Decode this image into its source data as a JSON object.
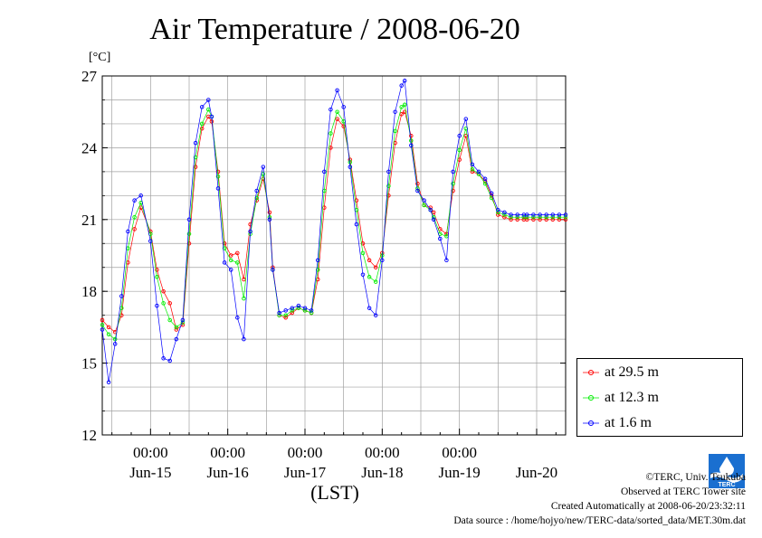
{
  "title": "Air Temperature / 2008-06-20",
  "unit_label": "[°C]",
  "x_axis_label": "(LST)",
  "legend": [
    {
      "label": "at 29.5 m",
      "color": "#ff0000"
    },
    {
      "label": "at 12.3 m",
      "color": "#00ee00"
    },
    {
      "label": "at 1.6 m",
      "color": "#0000ff"
    }
  ],
  "credits": {
    "line1": "©TERC, Univ. Tsukuba",
    "line2": "Observed at TERC Tower site",
    "line3": "Created Automatically at 2008-06-20/23:32:11",
    "line4": "Data source : /home/hojyo/new/TERC-data/sorted_data/MET.30m.dat"
  },
  "logo_text": "TERC",
  "chart_data": {
    "type": "line",
    "title": "Air Temperature / 2008-06-20",
    "ylabel": "[°C]",
    "xlabel": "(LST)",
    "ylim": [
      12,
      27
    ],
    "y_ticks": [
      12,
      15,
      18,
      21,
      24,
      27
    ],
    "xlim": [
      -15,
      129
    ],
    "x_unit": "hours since Jun-15 00:00",
    "x_tick_marks": [
      0,
      24,
      48,
      72,
      96
    ],
    "x_tick_labels": [
      "00:00",
      "00:00",
      "00:00",
      "00:00",
      "00:00"
    ],
    "day_labels": [
      {
        "x": 0,
        "label": "Jun-15"
      },
      {
        "x": 24,
        "label": "Jun-16"
      },
      {
        "x": 48,
        "label": "Jun-17"
      },
      {
        "x": 72,
        "label": "Jun-18"
      },
      {
        "x": 96,
        "label": "Jun-19"
      },
      {
        "x": 120,
        "label": "Jun-20"
      }
    ],
    "grid": true,
    "legend_position": "right",
    "series": [
      {
        "name": "at 29.5 m",
        "color": "#ff0000",
        "x": [
          -15,
          -13,
          -11,
          -9,
          -7,
          -5,
          -3,
          0,
          2,
          4,
          6,
          8,
          10,
          12,
          14,
          16,
          18,
          19,
          21,
          23,
          25,
          27,
          29,
          31,
          33,
          35,
          37,
          38,
          40,
          42,
          44,
          46,
          48,
          50,
          52,
          54,
          56,
          58,
          60,
          62,
          64,
          66,
          68,
          70,
          72,
          74,
          76,
          78,
          79,
          81,
          83,
          85,
          87,
          88,
          90,
          92,
          94,
          96,
          98,
          100,
          102,
          104,
          106,
          108,
          110,
          112,
          114,
          116,
          117,
          119,
          121,
          123,
          125,
          127,
          129
        ],
        "y": [
          16.8,
          16.5,
          16.3,
          17.0,
          19.2,
          20.6,
          21.5,
          20.5,
          18.9,
          18.0,
          17.5,
          16.4,
          16.6,
          20.0,
          23.2,
          24.8,
          25.3,
          25.1,
          23.0,
          20.0,
          19.5,
          19.6,
          18.5,
          20.8,
          21.8,
          22.7,
          21.3,
          19.0,
          17.0,
          16.9,
          17.1,
          17.3,
          17.2,
          17.1,
          18.5,
          21.5,
          24.0,
          25.2,
          24.9,
          23.5,
          21.8,
          20.0,
          19.3,
          19.0,
          19.6,
          22.0,
          24.2,
          25.4,
          25.5,
          24.5,
          22.5,
          21.6,
          21.5,
          21.3,
          20.6,
          20.4,
          22.2,
          23.5,
          24.5,
          23.0,
          22.9,
          22.6,
          22.0,
          21.2,
          21.1,
          21.0,
          21.0,
          21.0,
          21.0,
          21.0,
          21.0,
          21.0,
          21.0,
          21.0,
          21.0
        ]
      },
      {
        "name": "at 12.3 m",
        "color": "#00ee00",
        "x": [
          -15,
          -13,
          -11,
          -9,
          -7,
          -5,
          -3,
          0,
          2,
          4,
          6,
          8,
          10,
          12,
          14,
          16,
          18,
          19,
          21,
          23,
          25,
          27,
          29,
          31,
          33,
          35,
          37,
          38,
          40,
          42,
          44,
          46,
          48,
          50,
          52,
          54,
          56,
          58,
          60,
          62,
          64,
          66,
          68,
          70,
          72,
          74,
          76,
          78,
          79,
          81,
          83,
          85,
          87,
          88,
          90,
          92,
          94,
          96,
          98,
          100,
          102,
          104,
          106,
          108,
          110,
          112,
          114,
          116,
          117,
          119,
          121,
          123,
          125,
          127,
          129
        ],
        "y": [
          16.6,
          16.2,
          16.0,
          17.3,
          19.8,
          21.1,
          21.7,
          20.4,
          18.6,
          17.5,
          16.8,
          16.5,
          16.7,
          20.4,
          23.6,
          25.0,
          25.6,
          25.3,
          22.8,
          19.8,
          19.3,
          19.2,
          17.7,
          20.4,
          21.9,
          22.9,
          21.1,
          18.9,
          17.0,
          17.0,
          17.2,
          17.3,
          17.2,
          17.1,
          18.9,
          22.2,
          24.6,
          25.5,
          25.1,
          23.4,
          21.4,
          19.6,
          18.6,
          18.4,
          19.5,
          22.4,
          24.7,
          25.7,
          25.8,
          24.3,
          22.3,
          21.6,
          21.4,
          21.1,
          20.4,
          20.3,
          22.5,
          23.9,
          24.8,
          23.1,
          22.9,
          22.5,
          21.9,
          21.3,
          21.2,
          21.1,
          21.1,
          21.1,
          21.1,
          21.1,
          21.1,
          21.1,
          21.1,
          21.1,
          21.1
        ]
      },
      {
        "name": "at 1.6 m",
        "color": "#0000ff",
        "x": [
          -15,
          -13,
          -11,
          -9,
          -7,
          -5,
          -3,
          0,
          2,
          4,
          6,
          8,
          10,
          12,
          14,
          16,
          18,
          19,
          21,
          23,
          25,
          27,
          29,
          31,
          33,
          35,
          37,
          38,
          40,
          42,
          44,
          46,
          48,
          50,
          52,
          54,
          56,
          58,
          60,
          62,
          64,
          66,
          68,
          70,
          72,
          74,
          76,
          78,
          79,
          81,
          83,
          85,
          87,
          88,
          90,
          92,
          94,
          96,
          98,
          100,
          102,
          104,
          106,
          108,
          110,
          112,
          114,
          116,
          117,
          119,
          121,
          123,
          125,
          127,
          129
        ],
        "y": [
          16.4,
          14.2,
          15.8,
          17.8,
          20.5,
          21.8,
          22.0,
          20.1,
          17.4,
          15.2,
          15.1,
          16.0,
          16.8,
          21.0,
          24.2,
          25.7,
          26.0,
          25.3,
          22.3,
          19.2,
          18.9,
          16.9,
          16.0,
          20.5,
          22.2,
          23.2,
          21.0,
          18.9,
          17.1,
          17.2,
          17.3,
          17.4,
          17.3,
          17.2,
          19.3,
          23.0,
          25.6,
          26.4,
          25.7,
          23.2,
          20.8,
          18.7,
          17.3,
          17.0,
          19.3,
          23.0,
          25.5,
          26.6,
          26.8,
          24.1,
          22.2,
          21.8,
          21.4,
          21.0,
          20.2,
          19.3,
          23.0,
          24.5,
          25.2,
          23.3,
          23.0,
          22.7,
          22.1,
          21.4,
          21.3,
          21.2,
          21.2,
          21.2,
          21.2,
          21.2,
          21.2,
          21.2,
          21.2,
          21.2,
          21.2
        ]
      }
    ]
  }
}
